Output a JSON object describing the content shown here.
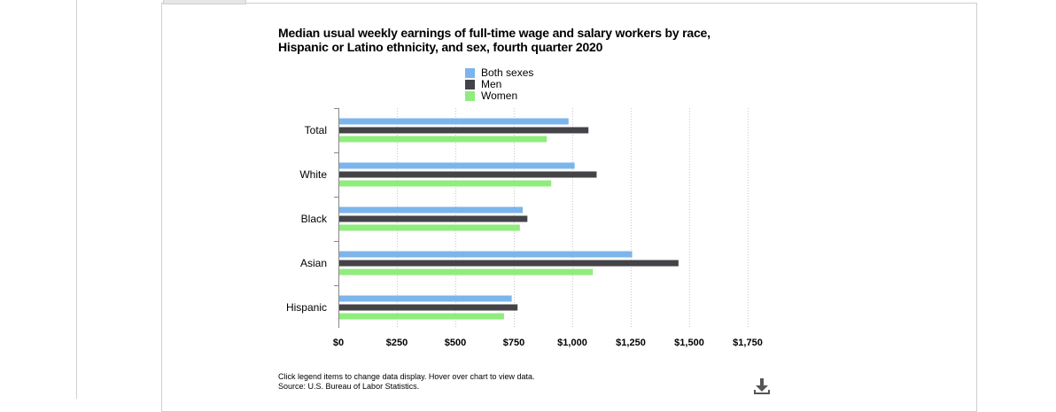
{
  "chart_data": {
    "type": "bar",
    "orientation": "horizontal",
    "title_lines": [
      "Median usual weekly earnings of full-time wage and salary workers by race,",
      "Hispanic or Latino ethnicity, and sex, fourth quarter 2020"
    ],
    "categories": [
      "Total",
      "White",
      "Black",
      "Asian",
      "Hispanic"
    ],
    "series": [
      {
        "name": "Both sexes",
        "color": "#7cb5ec",
        "values": [
          984,
          1010,
          788,
          1256,
          741
        ]
      },
      {
        "name": "Men",
        "color": "#434348",
        "values": [
          1069,
          1104,
          808,
          1454,
          766
        ]
      },
      {
        "name": "Women",
        "color": "#90ed7d",
        "values": [
          891,
          910,
          776,
          1088,
          708
        ]
      }
    ],
    "xlim": [
      0,
      1750
    ],
    "x_ticks": [
      0,
      250,
      500,
      750,
      1000,
      1250,
      1500,
      1750
    ],
    "x_tick_labels": [
      "$0",
      "$250",
      "$500",
      "$750",
      "$1,000",
      "$1,250",
      "$1,500",
      "$1,750"
    ],
    "grid": "vertical dotted",
    "legend_position": "top-center"
  },
  "footer": {
    "note": "Click legend items to change data display. Hover over chart to view data.",
    "source": "Source: U.S. Bureau of Labor Statistics."
  },
  "icons": {
    "download": "download-icon"
  }
}
